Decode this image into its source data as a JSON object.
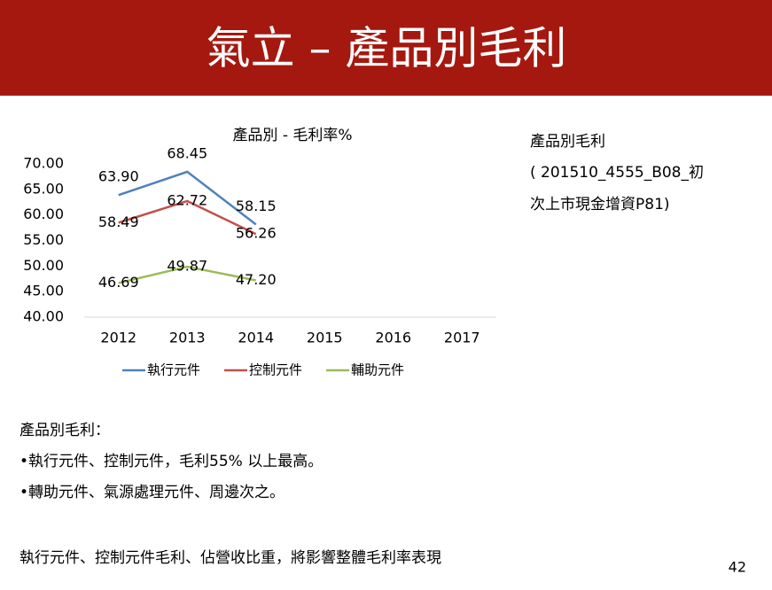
{
  "header": {
    "title": "氣立 – 產品別毛利"
  },
  "chart_data": {
    "type": "line",
    "title": "產品別 - 毛利率%",
    "categories": [
      "2012",
      "2013",
      "2014",
      "2015",
      "2016",
      "2017"
    ],
    "series": [
      {
        "name": "執行元件",
        "color": "#4f81bd",
        "values": [
          63.9,
          68.45,
          58.15,
          null,
          null,
          null
        ],
        "value_labels": [
          "63.90",
          "68.45",
          "58.15",
          null,
          null,
          null
        ]
      },
      {
        "name": "控制元件",
        "color": "#c0504d",
        "values": [
          58.49,
          62.72,
          56.26,
          null,
          null,
          null
        ],
        "value_labels": [
          "58.49",
          "62.72",
          "56.26",
          null,
          null,
          null
        ]
      },
      {
        "name": "輔助元件",
        "color": "#9bbb59",
        "values": [
          46.69,
          49.87,
          47.2,
          null,
          null,
          null
        ],
        "value_labels": [
          "46.69",
          "49.87",
          "47.20",
          null,
          null,
          null
        ]
      }
    ],
    "ylim": [
      40,
      70
    ],
    "yticks": [
      {
        "value": 40,
        "label": "40.00"
      },
      {
        "value": 45,
        "label": "45.00"
      },
      {
        "value": 50,
        "label": "50.00"
      },
      {
        "value": 55,
        "label": "55.00"
      },
      {
        "value": 60,
        "label": "60.00"
      },
      {
        "value": 65,
        "label": "65.00"
      },
      {
        "value": 70,
        "label": "70.00"
      }
    ],
    "legend": "bottom"
  },
  "side_note": {
    "lines": [
      "產品別毛利",
      "( 201510_4555_B08_初",
      "次上市現金增資P81)"
    ]
  },
  "body": {
    "heading": "產品別毛利：",
    "bullets": [
      "•執行元件、控制元件，毛利55% 以上最高。",
      "•轉助元件、氣源處理元件、周邊次之。"
    ],
    "conclusion": "執行元件、控制元件毛利、佔營收比重，將影響整體毛利率表現"
  },
  "page_number": "42"
}
